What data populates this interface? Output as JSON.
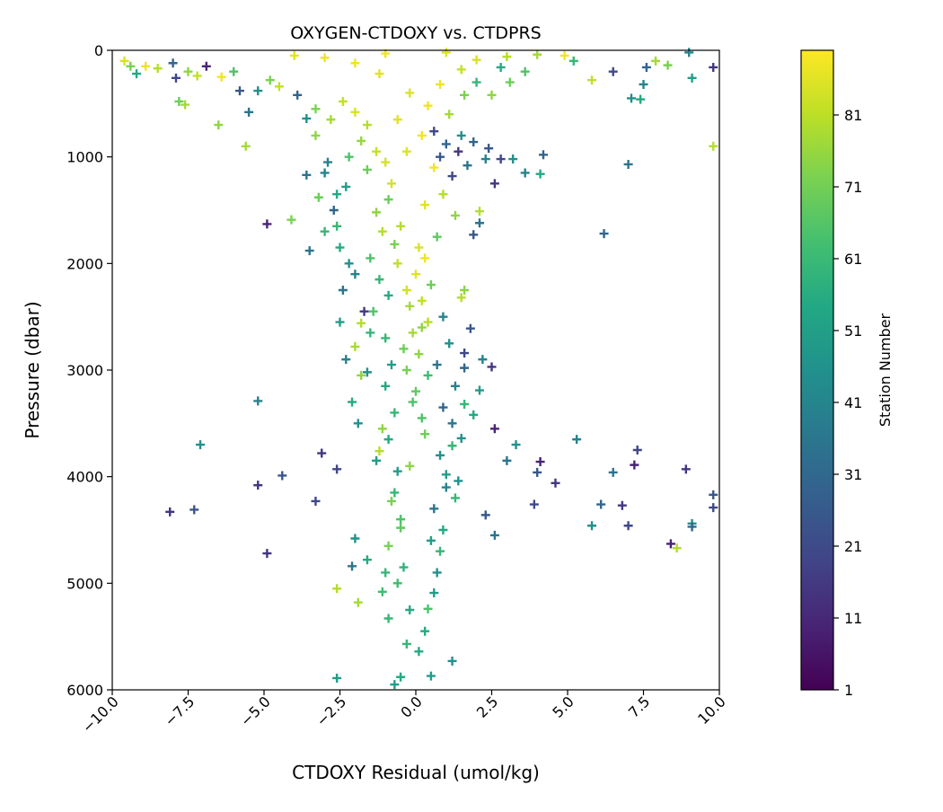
{
  "chart_data": {
    "type": "scatter",
    "title": "OXYGEN-CTDOXY vs. CTDPRS",
    "xlabel": "CTDOXY Residual (umol/kg)",
    "ylabel": "Pressure (dbar)",
    "xlim": [
      -10,
      10
    ],
    "ylim": [
      6000,
      0
    ],
    "y_inverted": true,
    "marker": "plus",
    "grid": false,
    "xticks": [
      -10,
      -7.5,
      -5,
      -2.5,
      0,
      2.5,
      5,
      7.5,
      10
    ],
    "xtick_labels": [
      "−10.0",
      "−7.5",
      "−5.0",
      "−2.5",
      "0.0",
      "2.5",
      "5.0",
      "7.5",
      "10.0"
    ],
    "yticks": [
      0,
      1000,
      2000,
      3000,
      4000,
      5000,
      6000
    ],
    "ytick_labels": [
      "0",
      "1000",
      "2000",
      "3000",
      "4000",
      "5000",
      "6000"
    ],
    "colorbar": {
      "label": "Station Number",
      "colormap": "viridis",
      "range": [
        1,
        90
      ],
      "ticks": [
        1,
        11,
        21,
        31,
        41,
        51,
        61,
        71,
        81
      ],
      "tick_labels": [
        "1",
        "11",
        "21",
        "31",
        "41",
        "51",
        "61",
        "71",
        "81"
      ],
      "gradient_colors": [
        "#440154",
        "#482475",
        "#414487",
        "#355f8d",
        "#2a788e",
        "#21918c",
        "#22a884",
        "#44bf70",
        "#7ad151",
        "#bddf26",
        "#fde725"
      ]
    },
    "points": [
      [
        -9.6,
        100,
        85
      ],
      [
        -9.4,
        150,
        72
      ],
      [
        -9.2,
        220,
        55
      ],
      [
        -8.9,
        150,
        88
      ],
      [
        -8.5,
        170,
        80
      ],
      [
        -8.0,
        120,
        30
      ],
      [
        -7.9,
        260,
        20
      ],
      [
        -7.8,
        480,
        70
      ],
      [
        -7.6,
        510,
        78
      ],
      [
        -7.5,
        200,
        75
      ],
      [
        -7.2,
        240,
        82
      ],
      [
        -6.9,
        150,
        10
      ],
      [
        -6.5,
        700,
        75
      ],
      [
        -6.4,
        250,
        88
      ],
      [
        -6.0,
        200,
        65
      ],
      [
        -5.8,
        380,
        25
      ],
      [
        -5.6,
        900,
        78
      ],
      [
        -5.5,
        580,
        35
      ],
      [
        -5.2,
        380,
        45
      ],
      [
        -4.8,
        280,
        72
      ],
      [
        -4.5,
        340,
        82
      ],
      [
        -3.9,
        420,
        30
      ],
      [
        -3.6,
        640,
        45
      ],
      [
        -3.6,
        1170,
        35
      ],
      [
        -3.3,
        800,
        75
      ],
      [
        -3.2,
        1380,
        70
      ],
      [
        -3.0,
        1150,
        40
      ],
      [
        -3.5,
        1880,
        35
      ],
      [
        -4.1,
        1590,
        72
      ],
      [
        -4.9,
        1630,
        10
      ],
      [
        -2.6,
        1650,
        60
      ],
      [
        -2.5,
        1850,
        55
      ],
      [
        -2.3,
        1280,
        50
      ],
      [
        -2.0,
        2100,
        40
      ],
      [
        -1.8,
        2560,
        80
      ],
      [
        -1.7,
        2450,
        15
      ],
      [
        -2.0,
        2780,
        78
      ],
      [
        -1.8,
        3050,
        75
      ],
      [
        -1.6,
        3020,
        45
      ],
      [
        -1.5,
        2650,
        60
      ],
      [
        -1.3,
        3850,
        50
      ],
      [
        -1.2,
        3760,
        80
      ],
      [
        -1.1,
        3550,
        75
      ],
      [
        -1.6,
        4780,
        55
      ],
      [
        -2.0,
        4580,
        45
      ],
      [
        -2.1,
        4840,
        35
      ],
      [
        -2.6,
        5050,
        80
      ],
      [
        -1.9,
        5180,
        78
      ],
      [
        -2.6,
        5890,
        50
      ],
      [
        -1.0,
        4900,
        60
      ],
      [
        -5.2,
        3290,
        40
      ],
      [
        -7.1,
        3700,
        45
      ],
      [
        -3.1,
        3780,
        15
      ],
      [
        -2.6,
        3930,
        20
      ],
      [
        -4.4,
        3990,
        25
      ],
      [
        -5.2,
        4080,
        15
      ],
      [
        -3.3,
        4230,
        20
      ],
      [
        -8.1,
        4330,
        15
      ],
      [
        -7.3,
        4310,
        25
      ],
      [
        -4.9,
        4720,
        15
      ],
      [
        2.6,
        3550,
        10
      ],
      [
        3.0,
        3850,
        35
      ],
      [
        3.3,
        3700,
        45
      ],
      [
        3.9,
        4260,
        20
      ],
      [
        4.1,
        3860,
        10
      ],
      [
        4.0,
        3960,
        25
      ],
      [
        4.6,
        4060,
        15
      ],
      [
        5.3,
        3650,
        40
      ],
      [
        5.8,
        4460,
        45
      ],
      [
        6.1,
        4260,
        30
      ],
      [
        6.5,
        3960,
        35
      ],
      [
        6.8,
        4270,
        15
      ],
      [
        7.0,
        4460,
        20
      ],
      [
        7.2,
        3890,
        10
      ],
      [
        7.3,
        3750,
        20
      ],
      [
        8.4,
        4630,
        10
      ],
      [
        8.6,
        4670,
        80
      ],
      [
        8.9,
        3930,
        15
      ],
      [
        9.1,
        4440,
        45
      ],
      [
        9.1,
        4470,
        30
      ],
      [
        9.8,
        4170,
        25
      ],
      [
        9.8,
        4290,
        20
      ],
      [
        2.3,
        4360,
        25
      ],
      [
        2.6,
        4550,
        35
      ],
      [
        9.8,
        900,
        80
      ],
      [
        7.0,
        1070,
        35
      ],
      [
        6.2,
        1720,
        30
      ],
      [
        7.9,
        100,
        78
      ],
      [
        8.3,
        140,
        72
      ],
      [
        9.1,
        260,
        50
      ],
      [
        9.8,
        160,
        15
      ],
      [
        9.0,
        20,
        40
      ],
      [
        7.5,
        320,
        40
      ],
      [
        7.1,
        450,
        45
      ],
      [
        7.4,
        460,
        55
      ],
      [
        7.6,
        160,
        30
      ],
      [
        6.5,
        200,
        20
      ],
      [
        5.8,
        280,
        82
      ],
      [
        5.2,
        100,
        60
      ],
      [
        4.9,
        50,
        88
      ],
      [
        4.2,
        980,
        30
      ],
      [
        4.1,
        1160,
        55
      ],
      [
        3.2,
        1020,
        45
      ],
      [
        3.6,
        1150,
        40
      ],
      [
        2.8,
        1020,
        20
      ],
      [
        2.6,
        1250,
        15
      ],
      [
        2.1,
        1510,
        80
      ],
      [
        2.1,
        1620,
        35
      ],
      [
        1.9,
        1730,
        25
      ],
      [
        1.6,
        2250,
        75
      ],
      [
        1.5,
        2320,
        80
      ],
      [
        1.6,
        2840,
        20
      ],
      [
        1.8,
        2610,
        25
      ],
      [
        1.6,
        2980,
        30
      ],
      [
        2.5,
        2970,
        15
      ],
      [
        2.2,
        2900,
        40
      ],
      [
        2.1,
        3190,
        50
      ],
      [
        1.6,
        3320,
        60
      ],
      [
        1.9,
        3420,
        55
      ],
      [
        1.5,
        3640,
        45
      ],
      [
        1.2,
        3710,
        60
      ],
      [
        1.0,
        3980,
        50
      ],
      [
        1.4,
        4040,
        45
      ],
      [
        1.3,
        4200,
        60
      ],
      [
        0.9,
        4500,
        55
      ],
      [
        0.8,
        4700,
        60
      ],
      [
        0.7,
        4900,
        45
      ],
      [
        0.6,
        5090,
        50
      ],
      [
        0.4,
        5240,
        65
      ],
      [
        0.3,
        5450,
        55
      ],
      [
        -0.3,
        5570,
        60
      ],
      [
        0.1,
        5640,
        55
      ],
      [
        0.5,
        5870,
        50
      ],
      [
        1.2,
        5730,
        45
      ],
      [
        -0.7,
        5950,
        50
      ],
      [
        -0.5,
        5880,
        55
      ],
      [
        -0.9,
        5330,
        60
      ],
      [
        -1.1,
        5080,
        62
      ],
      [
        -0.5,
        4480,
        68
      ],
      [
        -0.8,
        4230,
        72
      ],
      [
        -0.2,
        3900,
        75
      ],
      [
        0.3,
        3600,
        70
      ],
      [
        -0.1,
        3300,
        65
      ],
      [
        0.4,
        3050,
        62
      ],
      [
        -0.4,
        2800,
        70
      ],
      [
        0.2,
        2600,
        75
      ],
      [
        -0.2,
        2400,
        78
      ],
      [
        0.5,
        2200,
        70
      ],
      [
        -0.6,
        2000,
        82
      ],
      [
        0.1,
        1850,
        85
      ],
      [
        -0.5,
        1650,
        80
      ],
      [
        0.3,
        1450,
        86
      ],
      [
        -0.8,
        1250,
        84
      ],
      [
        0.6,
        1100,
        88
      ],
      [
        -0.3,
        950,
        85
      ],
      [
        0.2,
        800,
        88
      ],
      [
        -0.6,
        650,
        86
      ],
      [
        0.4,
        520,
        88
      ],
      [
        -0.2,
        400,
        85
      ],
      [
        0.8,
        320,
        88
      ],
      [
        -1.2,
        220,
        86
      ],
      [
        1.5,
        180,
        82
      ],
      [
        -2.0,
        120,
        88
      ],
      [
        2.0,
        90,
        85
      ],
      [
        -3.0,
        70,
        88
      ],
      [
        3.0,
        60,
        80
      ],
      [
        -4.0,
        50,
        86
      ],
      [
        4.0,
        40,
        78
      ],
      [
        -1.0,
        30,
        88
      ],
      [
        1.0,
        20,
        85
      ],
      [
        0.6,
        760,
        20
      ],
      [
        1.0,
        880,
        30
      ],
      [
        1.4,
        950,
        15
      ],
      [
        0.8,
        1000,
        25
      ],
      [
        1.7,
        1080,
        35
      ],
      [
        2.3,
        1020,
        40
      ],
      [
        1.2,
        1180,
        20
      ],
      [
        1.9,
        860,
        30
      ],
      [
        2.4,
        920,
        25
      ],
      [
        1.5,
        800,
        45
      ],
      [
        -0.9,
        1400,
        70
      ],
      [
        -1.3,
        1520,
        75
      ],
      [
        -1.1,
        1700,
        80
      ],
      [
        -0.7,
        1820,
        72
      ],
      [
        -1.5,
        1950,
        65
      ],
      [
        -1.2,
        2150,
        60
      ],
      [
        -0.9,
        2300,
        55
      ],
      [
        -1.4,
        2450,
        65
      ],
      [
        -1.0,
        2700,
        60
      ],
      [
        -0.8,
        2950,
        50
      ],
      [
        -1.0,
        3150,
        55
      ],
      [
        -0.7,
        3400,
        60
      ],
      [
        -0.9,
        3650,
        55
      ],
      [
        -0.6,
        3950,
        50
      ],
      [
        -0.7,
        4150,
        60
      ],
      [
        -0.5,
        4400,
        65
      ],
      [
        -0.9,
        4650,
        72
      ],
      [
        -0.4,
        4850,
        58
      ],
      [
        -0.6,
        5000,
        62
      ],
      [
        -0.2,
        5250,
        55
      ],
      [
        0.9,
        2500,
        40
      ],
      [
        1.1,
        2750,
        45
      ],
      [
        0.7,
        2950,
        35
      ],
      [
        1.3,
        3150,
        40
      ],
      [
        0.9,
        3350,
        30
      ],
      [
        1.2,
        3500,
        35
      ],
      [
        0.8,
        3800,
        45
      ],
      [
        1.0,
        4100,
        40
      ],
      [
        0.6,
        4300,
        35
      ],
      [
        0.5,
        4600,
        50
      ],
      [
        -3.3,
        550,
        72
      ],
      [
        -2.8,
        650,
        78
      ],
      [
        -2.4,
        480,
        82
      ],
      [
        -2.0,
        580,
        85
      ],
      [
        -1.6,
        700,
        80
      ],
      [
        -1.8,
        850,
        76
      ],
      [
        -1.3,
        950,
        82
      ],
      [
        -1.0,
        1050,
        84
      ],
      [
        -1.6,
        1120,
        70
      ],
      [
        -2.2,
        1000,
        65
      ],
      [
        2.5,
        420,
        75
      ],
      [
        3.1,
        300,
        70
      ],
      [
        3.6,
        200,
        65
      ],
      [
        2.8,
        160,
        55
      ],
      [
        2.0,
        300,
        60
      ],
      [
        1.6,
        420,
        72
      ],
      [
        1.1,
        600,
        78
      ],
      [
        0.9,
        1350,
        80
      ],
      [
        1.3,
        1550,
        75
      ],
      [
        0.7,
        1750,
        68
      ],
      [
        -2.9,
        1050,
        40
      ],
      [
        -2.6,
        1350,
        55
      ],
      [
        -2.7,
        1500,
        30
      ],
      [
        -3.0,
        1700,
        60
      ],
      [
        -2.2,
        2000,
        45
      ],
      [
        -2.4,
        2250,
        35
      ],
      [
        -2.5,
        2550,
        50
      ],
      [
        -2.3,
        2900,
        40
      ],
      [
        -2.1,
        3300,
        55
      ],
      [
        -1.9,
        3500,
        45
      ],
      [
        0.3,
        1950,
        88
      ],
      [
        0.0,
        2100,
        86
      ],
      [
        -0.3,
        2250,
        84
      ],
      [
        0.2,
        2350,
        82
      ],
      [
        0.4,
        2550,
        80
      ],
      [
        -0.1,
        2650,
        78
      ],
      [
        0.1,
        2850,
        75
      ],
      [
        -0.3,
        3000,
        72
      ],
      [
        0.0,
        3200,
        68
      ],
      [
        0.2,
        3450,
        65
      ]
    ]
  }
}
